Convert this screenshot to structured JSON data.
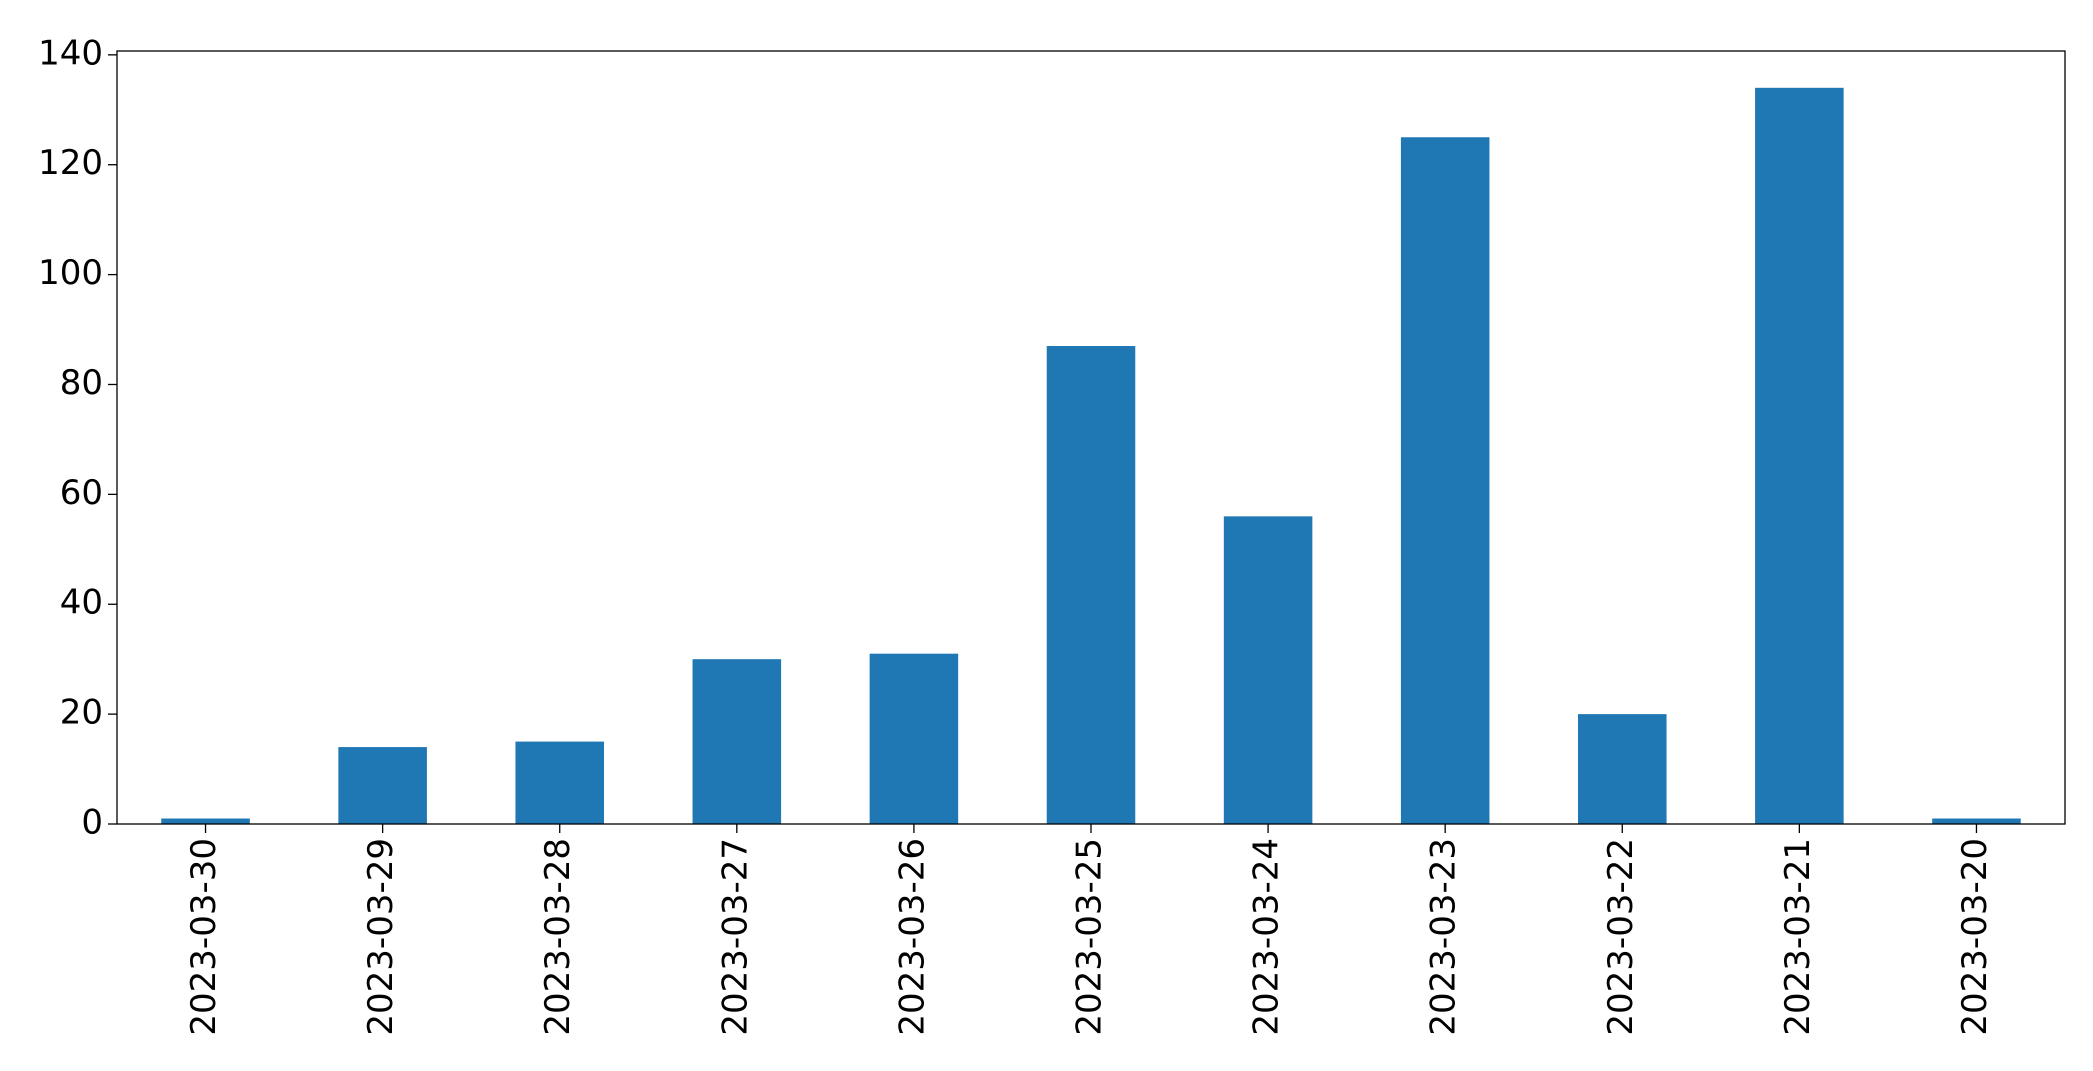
{
  "chart_data": {
    "type": "bar",
    "categories": [
      "2023-03-30",
      "2023-03-29",
      "2023-03-28",
      "2023-03-27",
      "2023-03-26",
      "2023-03-25",
      "2023-03-24",
      "2023-03-23",
      "2023-03-22",
      "2023-03-21",
      "2023-03-20"
    ],
    "values": [
      1,
      14,
      15,
      30,
      31,
      87,
      56,
      125,
      20,
      134,
      1
    ],
    "color": "#1f77b4",
    "ylim": [
      0,
      140.7
    ],
    "yticks": [
      0,
      20,
      40,
      60,
      80,
      100,
      120,
      140
    ],
    "grid": false
  }
}
